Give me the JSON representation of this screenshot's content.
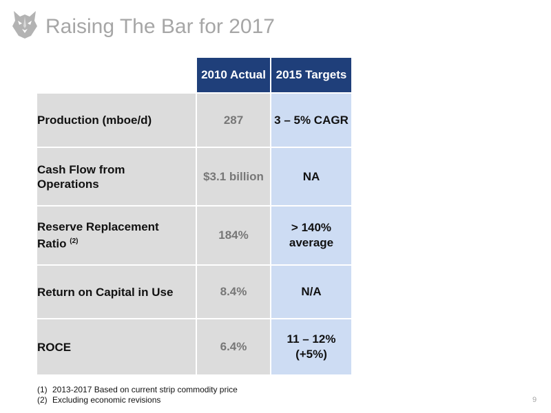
{
  "slide": {
    "title": "Raising The Bar for 2017",
    "page_number": "9"
  },
  "table": {
    "headers": [
      "2010 Actual",
      "2015 Targets"
    ],
    "rows": [
      {
        "label_lines": [
          "Production (mboe/d)"
        ],
        "note": "",
        "actual": "287",
        "target_lines": [
          "3 – 5% CAGR"
        ]
      },
      {
        "label_lines": [
          "Cash Flow from",
          "Operations"
        ],
        "note": "",
        "actual": "$3.1 billion",
        "target_lines": [
          "NA"
        ]
      },
      {
        "label_lines": [
          "Reserve Replacement",
          "Ratio"
        ],
        "note": "(2)",
        "actual": "184%",
        "target_lines": [
          "> 140%",
          "average"
        ]
      },
      {
        "label_lines": [
          "Return on Capital in Use"
        ],
        "note": "",
        "actual": "8.4%",
        "target_lines": [
          "N/A"
        ]
      },
      {
        "label_lines": [
          "ROCE"
        ],
        "note": "",
        "actual": "6.4%",
        "target_lines": [
          "11 – 12%",
          "(+5%)"
        ]
      }
    ]
  },
  "footnotes": [
    {
      "num": "(1)",
      "text": "2013-2017 Based on current strip commodity price"
    },
    {
      "num": "(2)",
      "text": "Excluding economic revisions"
    }
  ]
}
